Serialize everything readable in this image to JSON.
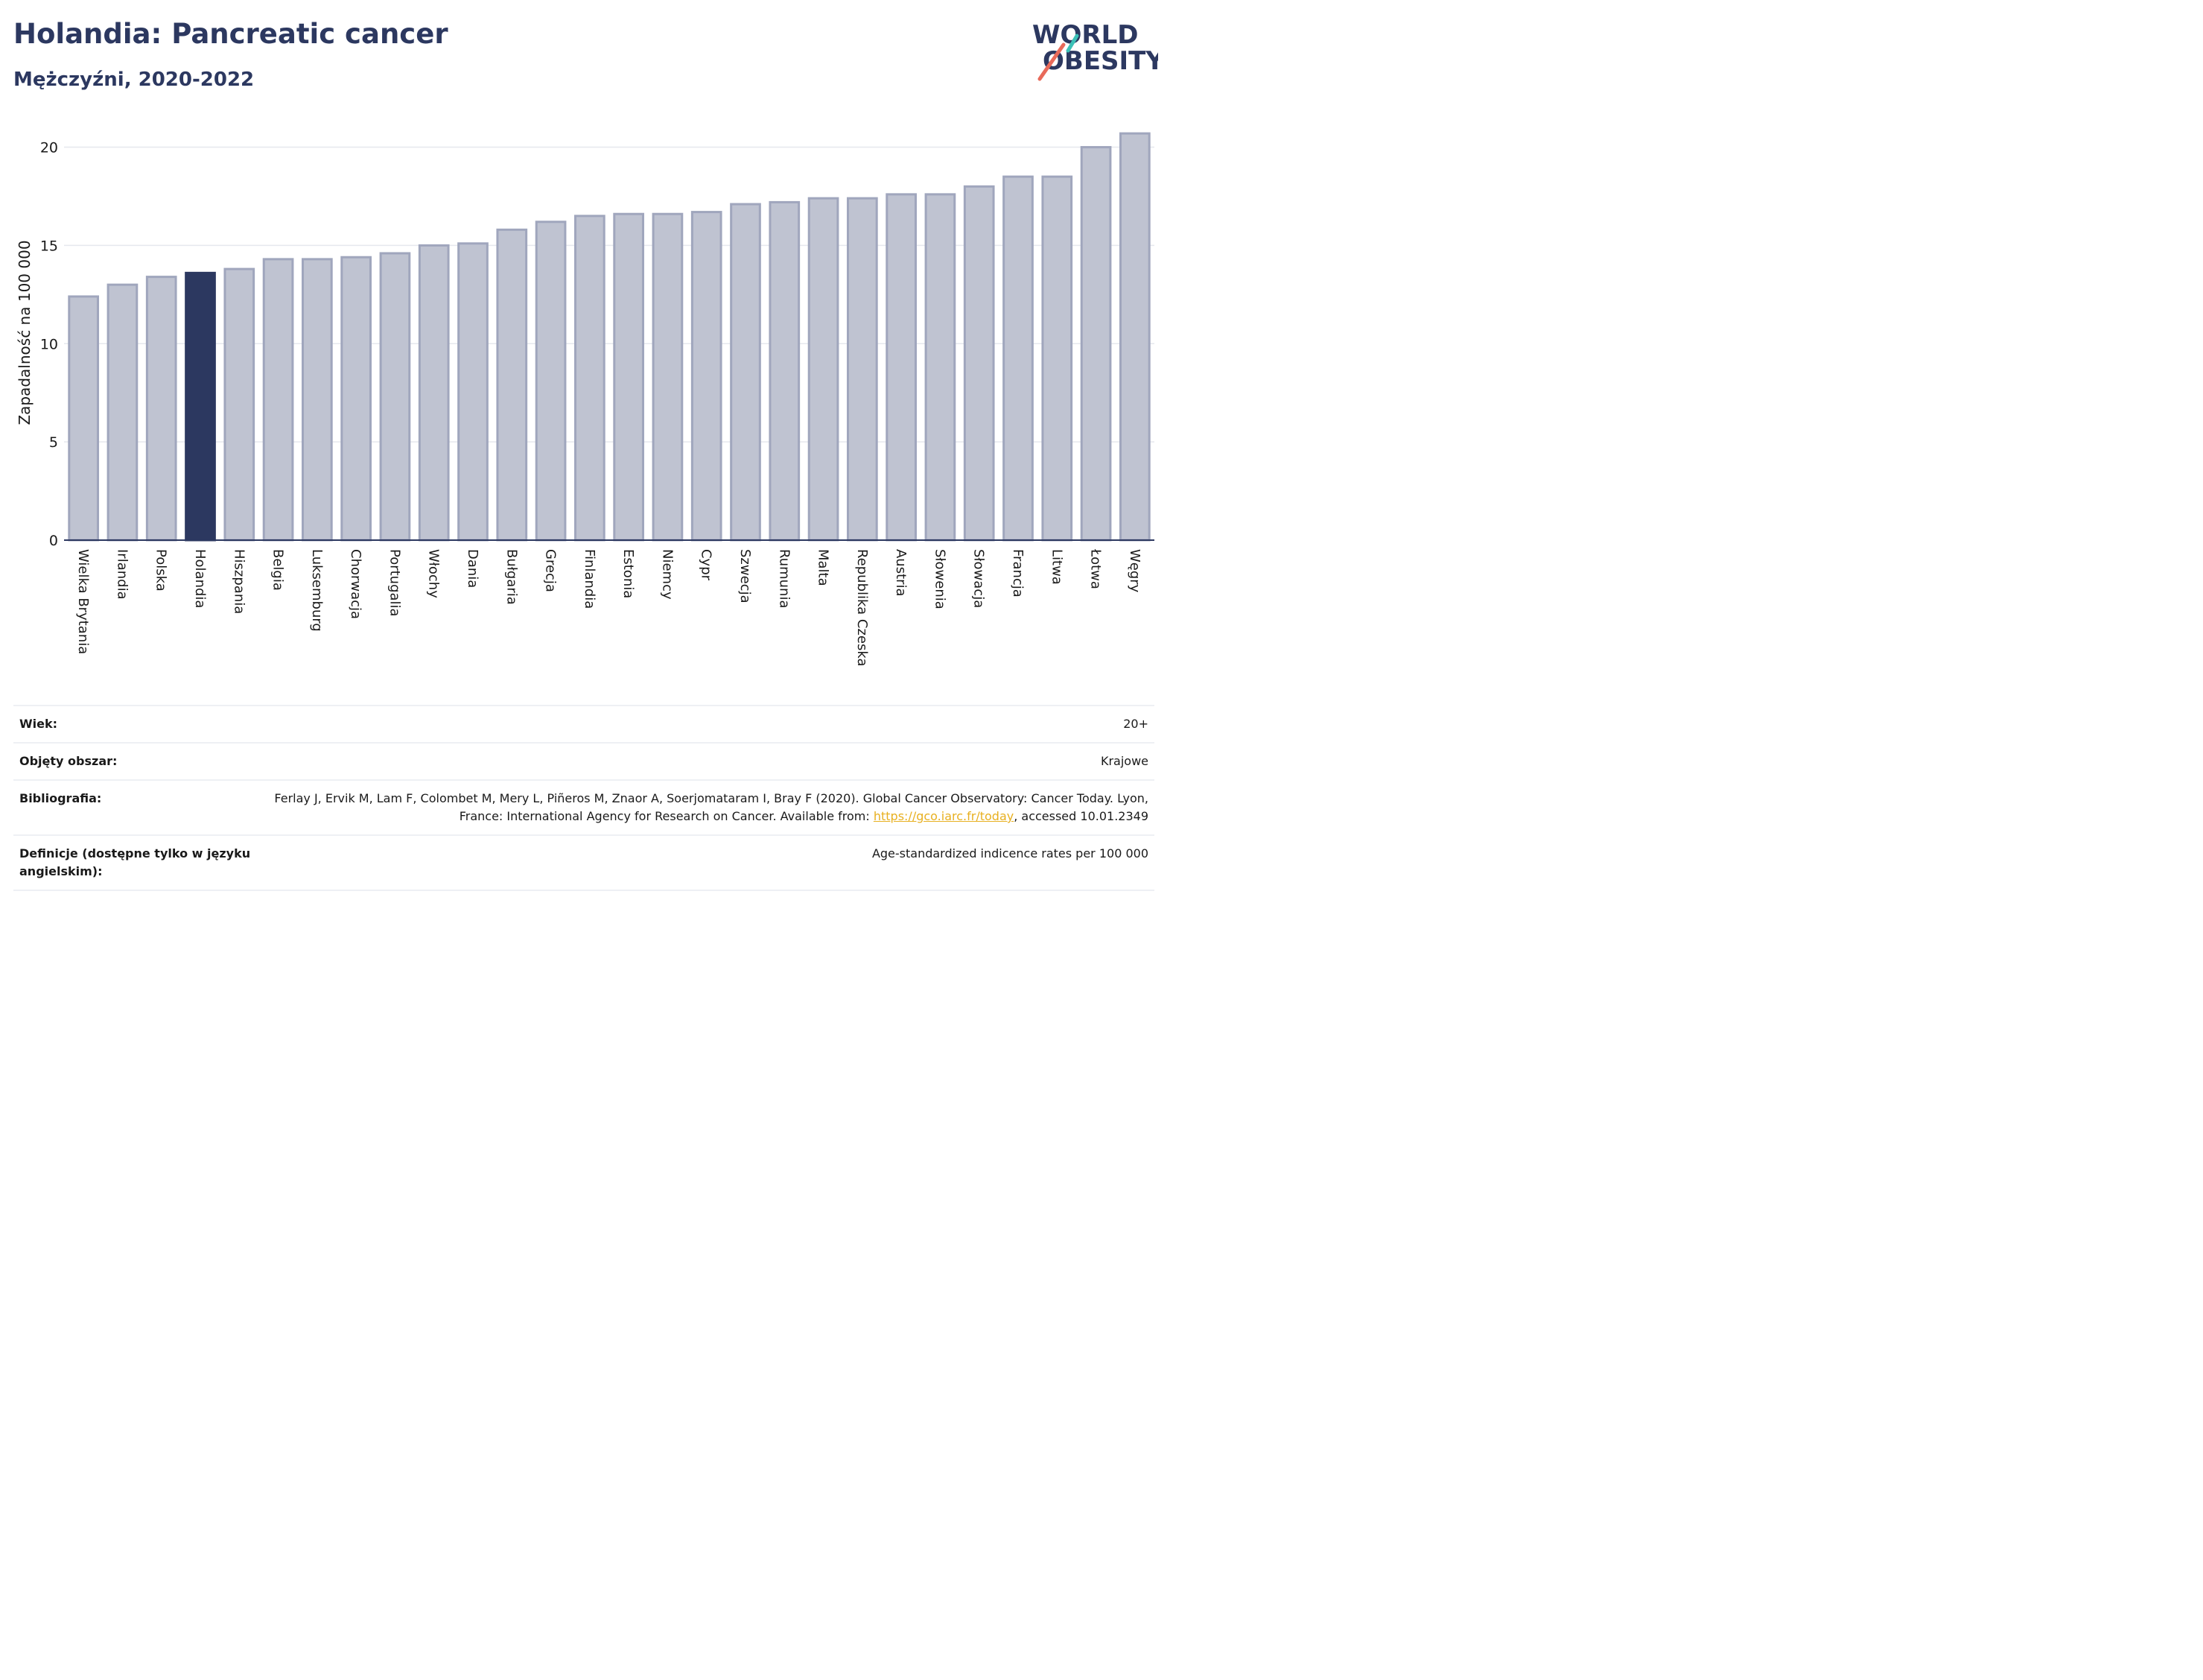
{
  "header": {
    "title": "Holandia: Pancreatic cancer",
    "subtitle": "Mężczyźni, 2020-2022"
  },
  "logo": {
    "line1": "WORLD",
    "line2": "OBESITY"
  },
  "colors": {
    "highlight_bar": "#2c3860",
    "bar_fill": "#bfc3d1",
    "bar_stroke": "#a0a6bd",
    "title": "#2c3860",
    "link": "#e8b020"
  },
  "chart_data": {
    "type": "bar",
    "title": "",
    "xlabel": "",
    "ylabel": "Zapadalność na 100 000",
    "ylim": [
      0,
      21.5
    ],
    "yticks": [
      0,
      5,
      10,
      15,
      20
    ],
    "grid": true,
    "highlight": "Holandia",
    "categories": [
      "Wielka Brytania",
      "Irlandia",
      "Polska",
      "Holandia",
      "Hiszpania",
      "Belgia",
      "Luksemburg",
      "Chorwacja",
      "Portugalia",
      "Włochy",
      "Dania",
      "Bułgaria",
      "Grecja",
      "Finlandia",
      "Estonia",
      "Niemcy",
      "Cypr",
      "Szwecja",
      "Rumunia",
      "Malta",
      "Republika Czeska",
      "Austria",
      "Słowenia",
      "Słowacja",
      "Francja",
      "Litwa",
      "Łotwa",
      "Węgry"
    ],
    "values": [
      12.4,
      13.0,
      13.4,
      13.6,
      13.8,
      14.3,
      14.3,
      14.4,
      14.6,
      15.0,
      15.1,
      15.8,
      16.2,
      16.5,
      16.6,
      16.6,
      16.7,
      17.1,
      17.2,
      17.4,
      17.4,
      17.6,
      17.6,
      18.0,
      18.5,
      18.5,
      20.0,
      20.7
    ]
  },
  "info": {
    "rows": [
      {
        "key": "Wiek:",
        "value": "20+"
      },
      {
        "key": "Objęty obszar:",
        "value": "Krajowe"
      },
      {
        "key": "Bibliografia:",
        "value_pre": "Ferlay J, Ervik M, Lam F, Colombet M, Mery L, Piñeros M, Znaor A, Soerjomataram I, Bray F (2020). Global Cancer Observatory: Cancer Today. Lyon, France: International Agency for Research on Cancer. Available from: ",
        "link": "https://gco.iarc.fr/today",
        "value_post": ", accessed 10.01.2349"
      },
      {
        "key": "Definicje (dostępne tylko w języku angielskim):",
        "value": "Age-standardized indicence rates per 100 000"
      }
    ]
  }
}
